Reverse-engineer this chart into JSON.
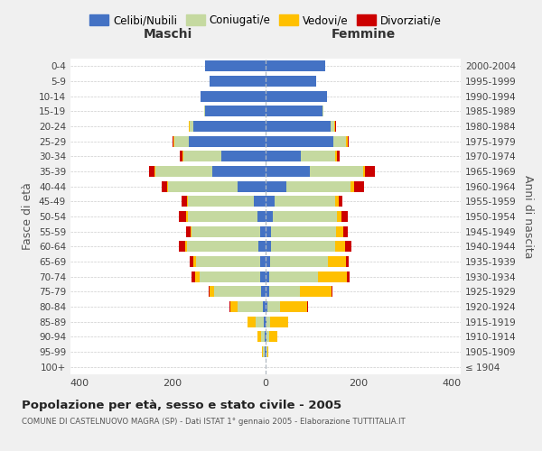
{
  "age_groups": [
    "100+",
    "95-99",
    "90-94",
    "85-89",
    "80-84",
    "75-79",
    "70-74",
    "65-69",
    "60-64",
    "55-59",
    "50-54",
    "45-49",
    "40-44",
    "35-39",
    "30-34",
    "25-29",
    "20-24",
    "15-19",
    "10-14",
    "5-9",
    "0-4"
  ],
  "birth_years": [
    "≤ 1904",
    "1905-1909",
    "1910-1914",
    "1915-1919",
    "1920-1924",
    "1925-1929",
    "1930-1934",
    "1935-1939",
    "1940-1944",
    "1945-1949",
    "1950-1954",
    "1955-1959",
    "1960-1964",
    "1965-1969",
    "1970-1974",
    "1975-1979",
    "1980-1984",
    "1985-1989",
    "1990-1994",
    "1995-1999",
    "2000-2004"
  ],
  "males": {
    "celibi": [
      0,
      2,
      2,
      3,
      5,
      10,
      12,
      12,
      15,
      12,
      18,
      25,
      60,
      115,
      95,
      165,
      155,
      130,
      140,
      120,
      130
    ],
    "coniugati": [
      0,
      4,
      8,
      18,
      55,
      100,
      130,
      138,
      155,
      148,
      150,
      142,
      150,
      122,
      82,
      32,
      8,
      2,
      0,
      0,
      0
    ],
    "vedovi": [
      0,
      2,
      8,
      18,
      16,
      10,
      10,
      5,
      4,
      2,
      3,
      2,
      2,
      2,
      2,
      2,
      2,
      0,
      0,
      0,
      0
    ],
    "divorziati": [
      0,
      0,
      0,
      0,
      2,
      2,
      8,
      8,
      12,
      10,
      15,
      12,
      12,
      12,
      5,
      2,
      0,
      0,
      0,
      0,
      0
    ]
  },
  "females": {
    "nubili": [
      0,
      2,
      2,
      2,
      4,
      8,
      8,
      10,
      12,
      12,
      15,
      20,
      45,
      95,
      75,
      145,
      140,
      122,
      132,
      108,
      128
    ],
    "coniugate": [
      0,
      2,
      5,
      8,
      28,
      65,
      105,
      125,
      138,
      140,
      138,
      130,
      138,
      115,
      75,
      28,
      8,
      2,
      0,
      0,
      0
    ],
    "vedove": [
      0,
      2,
      18,
      38,
      58,
      68,
      62,
      38,
      22,
      16,
      10,
      7,
      7,
      4,
      3,
      3,
      2,
      0,
      0,
      0,
      0
    ],
    "divorziate": [
      0,
      0,
      0,
      0,
      2,
      2,
      5,
      6,
      12,
      8,
      14,
      8,
      22,
      22,
      7,
      3,
      2,
      0,
      0,
      0,
      0
    ]
  },
  "colors": {
    "celibi": "#4472c4",
    "coniugati": "#c5d9a0",
    "vedovi": "#ffc000",
    "divorziati": "#cc0000"
  },
  "title": "Popolazione per età, sesso e stato civile - 2005",
  "subtitle": "COMUNE DI CASTELNUOVO MAGRA (SP) - Dati ISTAT 1° gennaio 2005 - Elaborazione TUTTITALIA.IT",
  "xlabel_left": "Maschi",
  "xlabel_right": "Femmine",
  "ylabel_left": "Fasce di età",
  "ylabel_right": "Anni di nascita",
  "xlim": 420,
  "legend_labels": [
    "Celibi/Nubili",
    "Coniugati/e",
    "Vedovi/e",
    "Divorziati/e"
  ],
  "bg_color": "#f0f0f0",
  "plot_bg": "#ffffff"
}
